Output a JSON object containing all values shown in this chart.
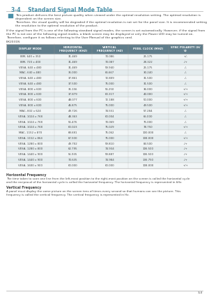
{
  "title": "3-4    Standard Signal Mode Table",
  "title_color": "#4a8fa8",
  "title_divider_color": "#bbbbbb",
  "note_icon_color": "#4a8fa8",
  "note_text1": "This product delivers the best picture quality when viewed under the optimal resolution setting. The optimal resolution is\ndependent on the screen size.",
  "note_text2": "Therefore, the visual quality will be degraded if the optimal resolution is not set for the panel size. It is recommended setting\nthe resolution to the optimal resolution of the product.",
  "body_text": "If the signal from the PC is one of the following standard signal modes, the screen is set automatically. However, if the signal from\nthe PC is not one of the following signal modes, a blank screen may be displayed or only the Power LED may be turned on.\nTherefore, configure it as follows referring to the User Manual of the graphics card.",
  "model_label": "BX2031N",
  "table_header": [
    "DISPLAY MODE",
    "HORIZONTAL\nFREQUENCY (KHZ)",
    "VERTICAL\nFREQUENCY (HZ)",
    "PIXEL CLOCK (MHZ)",
    "SYNC POLARITY (H/\nV)"
  ],
  "table_header_bg": "#607d8b",
  "table_header_color": "#ffffff",
  "table_row_bg_even": "#f2f6f7",
  "table_row_bg_odd": "#e4ecee",
  "table_border": "#bbbbbb",
  "rows": [
    [
      "IBM, 640 x 350",
      "31.469",
      "70.086",
      "25.175",
      "+/-"
    ],
    [
      "IBM, 720 x 400",
      "31.469",
      "70.087",
      "28.322",
      "-/+"
    ],
    [
      "VESA, 640 x 480",
      "31.469",
      "59.940",
      "25.175",
      "-/-"
    ],
    [
      "MAC, 640 x 480",
      "35.000",
      "66.667",
      "30.240",
      "-/-"
    ],
    [
      "VESA, 640 x 480",
      "37.861",
      "72.809",
      "31.500",
      "-/-"
    ],
    [
      "VESA, 640 x 480",
      "37.500",
      "75.000",
      "31.500",
      "-/-"
    ],
    [
      "VESA, 800 x 600",
      "35.156",
      "56.250",
      "36.000",
      "+/+"
    ],
    [
      "VESA, 800 x 600",
      "37.879",
      "60.317",
      "40.000",
      "+/+"
    ],
    [
      "VESA, 800 x 600",
      "48.077",
      "72.188",
      "50.000",
      "+/+"
    ],
    [
      "VESA, 800 x 600",
      "46.875",
      "75.000",
      "49.500",
      "+/+"
    ],
    [
      "MAC, 832 x 624",
      "49.726",
      "74.551",
      "57.284",
      "-/-"
    ],
    [
      "VESA, 1024 x 768",
      "48.363",
      "60.004",
      "65.000",
      "-/-"
    ],
    [
      "VESA, 1024 x 768",
      "56.476",
      "70.069",
      "75.000",
      "-/-"
    ],
    [
      "VESA, 1024 x 768",
      "60.023",
      "75.029",
      "78.750",
      "+/+"
    ],
    [
      "MAC, 1152 x 870",
      "68.681",
      "75.062",
      "100.000",
      "-/-"
    ],
    [
      "VESA, 1152 x 864",
      "67.500",
      "75.000",
      "108.000",
      "+/+"
    ],
    [
      "VESA, 1280 x 800",
      "49.702",
      "59.810",
      "83.500",
      "-/+"
    ],
    [
      "VESA, 1280 x 800",
      "62.795",
      "74.934",
      "106.500",
      "-/+"
    ],
    [
      "VESA, 1440 x 900",
      "55.935",
      "59.887",
      "106.500",
      "-/+"
    ],
    [
      "VESA, 1440 x 900",
      "70.635",
      "74.984",
      "136.750",
      "-/+"
    ],
    [
      "VESA, 1600 x 900",
      "60.000",
      "60.000",
      "108.000",
      "+/+"
    ]
  ],
  "h_freq_title": "Horizontal Frequency",
  "h_freq_body": "The time taken to scan one line from the left-most position to the right-most position on the screen is called the horizontal cycle\nand the reciprocal of the horizontal cycle is called the horizontal frequency. The horizontal frequency is represented in kHz.",
  "v_freq_title": "Vertical Frequency",
  "v_freq_body": "A panel must display the same picture on the screen tens of times every second so that humans can see the picture. This\nfrequency is called the vertical frequency. The vertical frequency is represented in Hz.",
  "footer_text": "3-4",
  "bg_color": "#ffffff",
  "text_color": "#444444",
  "page_border_color": "#aaaaaa"
}
